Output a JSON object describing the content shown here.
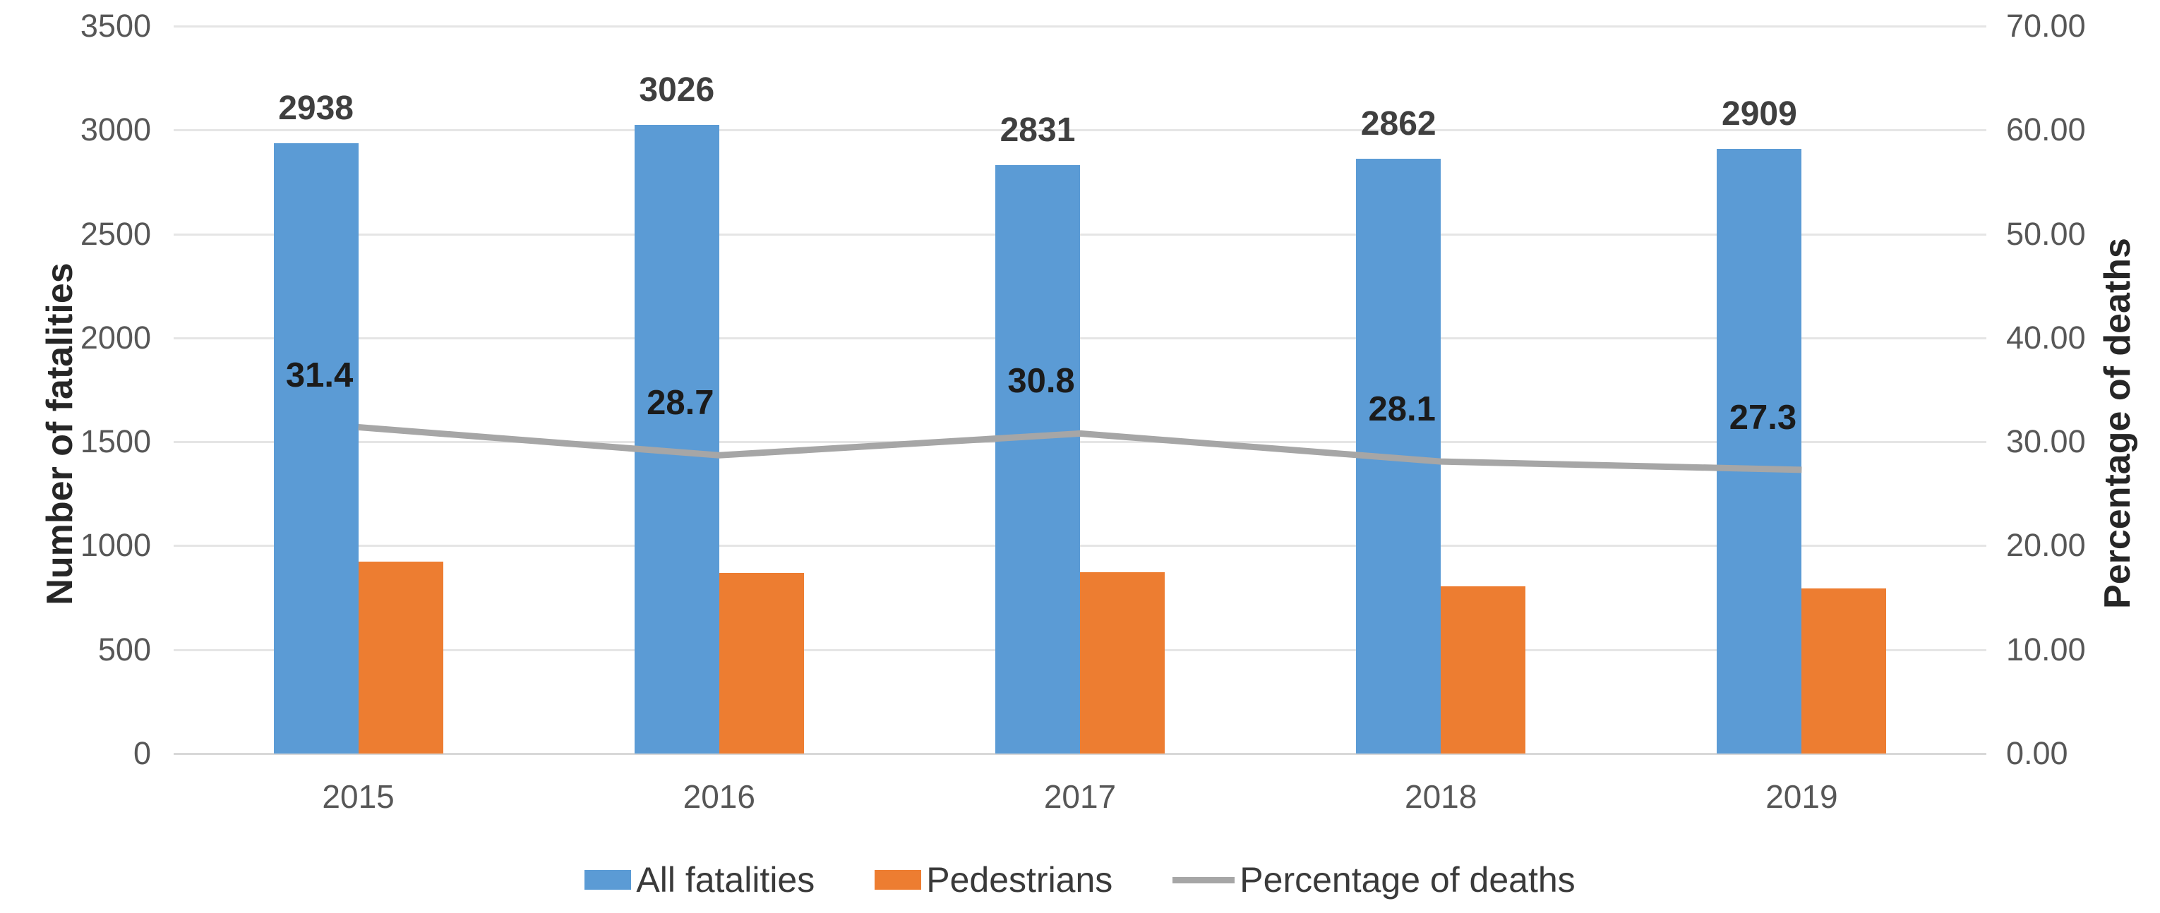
{
  "chart_data": {
    "type": "combo-bar-line",
    "categories": [
      "2015",
      "2016",
      "2017",
      "2018",
      "2019"
    ],
    "series": [
      {
        "name": "All fatalities",
        "type": "bar",
        "axis": "left",
        "color": "#5B9BD5",
        "values": [
          2938,
          3026,
          2831,
          2862,
          2909
        ],
        "data_labels": [
          "2938",
          "3026",
          "2831",
          "2862",
          "2909"
        ]
      },
      {
        "name": "Pedestrians",
        "type": "bar",
        "axis": "left",
        "color": "#ED7D31",
        "values": [
          922,
          868,
          872,
          804,
          794
        ]
      },
      {
        "name": "Percentage of deaths",
        "type": "line",
        "axis": "right",
        "color": "#A6A6A6",
        "values": [
          31.4,
          28.7,
          30.8,
          28.1,
          27.3
        ],
        "data_labels": [
          "31.4",
          "28.7",
          "30.8",
          "28.1",
          "27.3"
        ]
      }
    ],
    "left_axis": {
      "title": "Number of fatalities",
      "min": 0,
      "max": 3500,
      "step": 500,
      "ticks": [
        "3500",
        "3000",
        "2500",
        "2000",
        "1500",
        "1000",
        "500",
        "0"
      ]
    },
    "right_axis": {
      "title": "Percentage of deaths",
      "min": 0,
      "max": 70,
      "step": 10,
      "ticks": [
        "70.00",
        "60.00",
        "50.00",
        "40.00",
        "30.00",
        "20.00",
        "10.00",
        "0.00"
      ]
    },
    "legend": {
      "position": "bottom",
      "entries": [
        "All fatalities",
        "Pedestrians",
        "Percentage of deaths"
      ]
    },
    "grid": true,
    "background": "#FFFFFF"
  }
}
